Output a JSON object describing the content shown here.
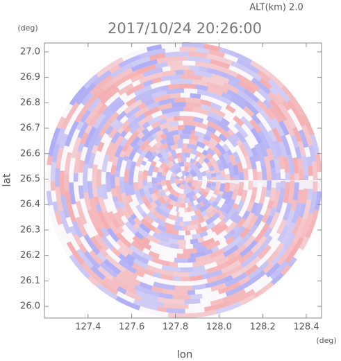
{
  "chart_data": {
    "type": "radar-ppi",
    "title": "2017/10/24 20:26:00",
    "subtitle": "ALT(km) 2.0",
    "x_label": "lon",
    "y_label": "lat",
    "x_unit": "(deg)",
    "y_unit": "(deg)",
    "xlim": [
      127.2,
      128.47
    ],
    "xticks": [
      127.4,
      127.6,
      127.8,
      {
        "value": 128,
        "label": "128.0"
      },
      128.2,
      128.4
    ],
    "ylim": [
      25.954,
      27.035
    ],
    "yticks": [
      {
        "value": 26,
        "label": "26.0"
      },
      26.1,
      26.2,
      26.3,
      26.4,
      26.5,
      26.6,
      26.7,
      26.8,
      26.9,
      {
        "value": 27,
        "label": "27.0"
      }
    ]
  }
}
